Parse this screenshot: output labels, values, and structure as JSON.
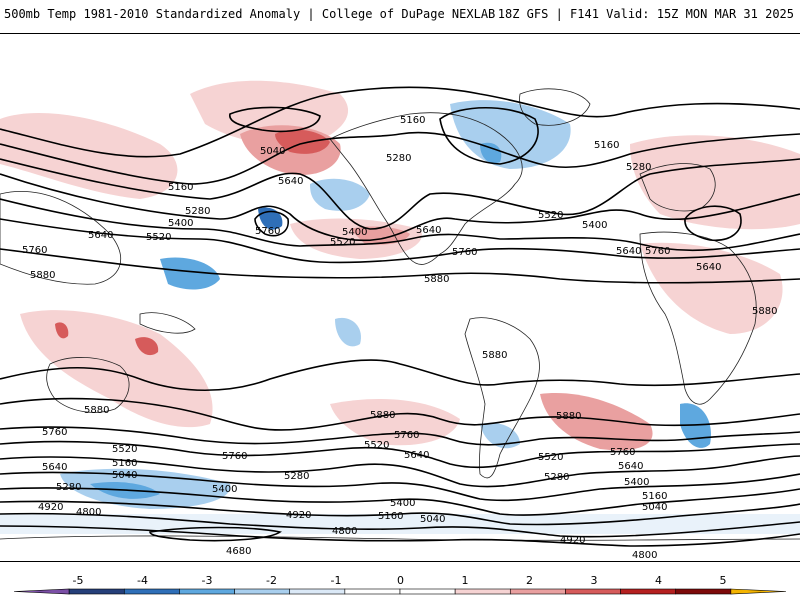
{
  "header": {
    "left_title": "500mb Temp 1981-2010 Standardized Anomaly | College of DuPage NEXLAB",
    "right_title": "18Z GFS | F141 Valid: 15Z MON MAR 31 2025"
  },
  "contour_labels": {
    "l5160_top": "5160",
    "l5040_pac": "5040",
    "l5280_na": "5280",
    "l5160_eu": "5160",
    "l5280_eu": "5280",
    "l5640_ak": "5640",
    "l5160_wpac": "5160",
    "l5280_wpac": "5280",
    "l5400_wpac": "5400",
    "l5520_wpac": "5520",
    "l5640_wpac": "5640",
    "l5760_wpac": "5760",
    "l5880_asia": "5880",
    "l5760_pac": "5760",
    "l5400_pac": "5400",
    "l5520_pac": "5520",
    "l5640_us": "5640",
    "l5760_us": "5760",
    "l5880_gulf": "5880",
    "l5520_atl": "5520",
    "l5400_atl": "5400",
    "l5640_atl": "5640",
    "l5760_atl": "5760",
    "l5640_eu": "5640",
    "l5880_af": "5880",
    "l5880_sa": "5880",
    "l5880_spac": "5880",
    "l5880_sam": "5880",
    "l5880_aus": "5880",
    "l5760_aus": "5760",
    "l5760_ind": "5760",
    "l5760_spac": "5760",
    "l5640_spac": "5640",
    "l5520_spac": "5520",
    "l5760_satl": "5760",
    "l5640_satl": "5640",
    "l5520_satl": "5520",
    "l5400_satl": "5400",
    "l5280_satl": "5280",
    "l5160_satl": "5160",
    "l5040_satl": "5040",
    "l5520_s1": "5520",
    "l5640_s1": "5640",
    "l5160_s1": "5160",
    "l5040_s1": "5040",
    "l5280_s1": "5280",
    "l4920_s1": "4920",
    "l4800_s1": "4800",
    "l5400_s2": "5400",
    "l5280_s2": "5280",
    "l4920_s2": "4920",
    "l4800_s2": "4800",
    "l4680_s2": "4680",
    "l5400_s3": "5400",
    "l5160_s3": "5160",
    "l5040_s3": "5040",
    "l4920_s3": "4920",
    "l4800_s3": "4800",
    "l5280_s4": "5280"
  },
  "colorbar": {
    "ticks": [
      "-5",
      "-4",
      "-3",
      "-2",
      "-1",
      "0",
      "1",
      "2",
      "3",
      "4",
      "5"
    ],
    "colors": [
      "#7b4fa6",
      "#253f7a",
      "#2f6fb8",
      "#5ea8df",
      "#a9cfee",
      "#dbe9f7",
      "#ffffff",
      "#ffffff",
      "#f6d3d3",
      "#e9a0a0",
      "#d65b5b",
      "#b52020",
      "#7d0a0a",
      "#f4b400"
    ]
  }
}
